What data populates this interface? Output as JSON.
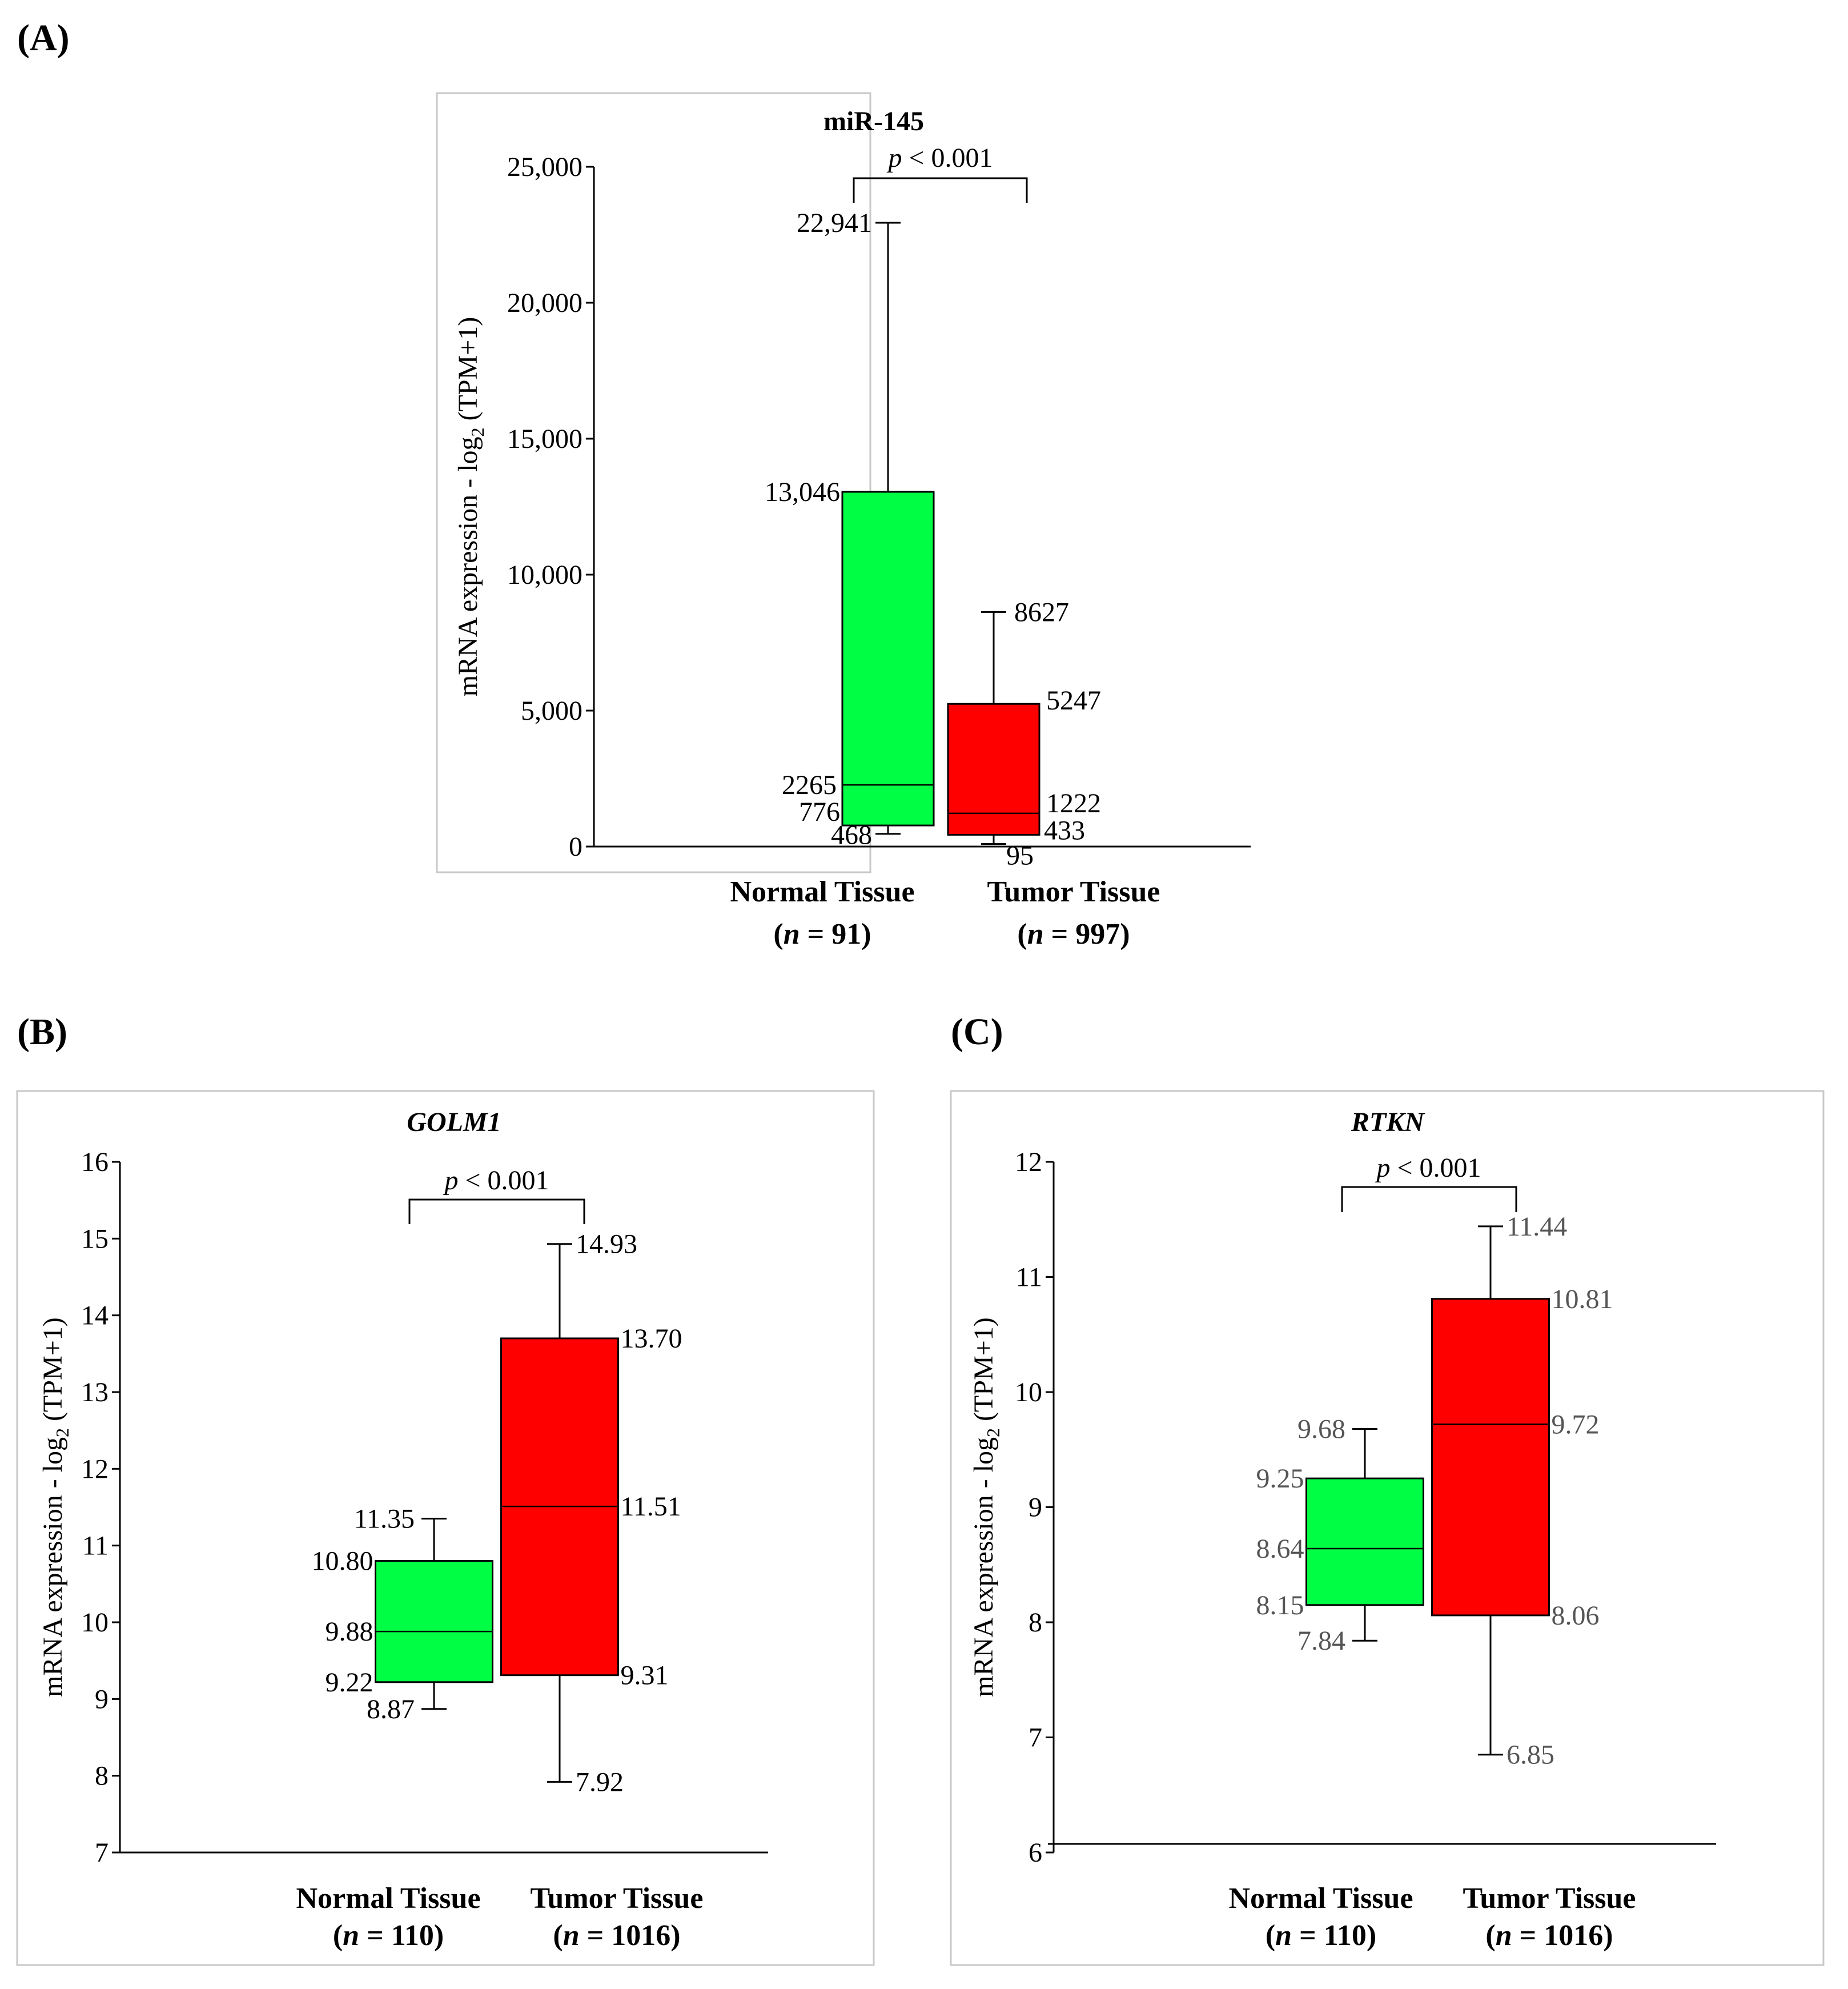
{
  "colors": {
    "normal": "#00ff44",
    "tumor": "#ff0000",
    "frame": "#c8c8c8",
    "axis": "#000000",
    "labels_c": "#555555"
  },
  "chart_data": [
    {
      "id": "A",
      "panel_label": "(A)",
      "type": "box",
      "title": "miR-145",
      "title_italic": false,
      "ylabel_prefix": "mRNA expression - log",
      "ylabel_sub": "2",
      "ylabel_suffix": " (TPM+1)",
      "ylim": [
        0,
        25000
      ],
      "yticks": [
        0,
        5000,
        10000,
        15000,
        20000,
        25000
      ],
      "ytick_labels": [
        "0",
        "5,000",
        "10,000",
        "15,000",
        "20,000",
        "25,000"
      ],
      "pvalue_p": "p",
      "pvalue_rest": " < 0.001",
      "groups": [
        {
          "name": "Normal Tissue",
          "n_prefix": "(",
          "n_italic": "n",
          "n_rest": " = 91)",
          "min": 468,
          "q1": 776,
          "median": 2265,
          "q3": 13046,
          "max": 22941,
          "labels": {
            "max": "22,941",
            "q3": "13,046",
            "median": "2265",
            "q1": "776",
            "min": "468"
          }
        },
        {
          "name": "Tumor Tissue",
          "n_prefix": "(",
          "n_italic": "n",
          "n_rest": " = 997)",
          "min": 95,
          "q1": 433,
          "median": 1222,
          "q3": 5247,
          "max": 8627,
          "labels": {
            "max": "8627",
            "q3": "5247",
            "median": "1222",
            "q1": "433",
            "min": "95"
          }
        }
      ]
    },
    {
      "id": "B",
      "panel_label": "(B)",
      "type": "box",
      "title": "GOLM1",
      "title_italic": true,
      "ylabel_prefix": "mRNA expression - log",
      "ylabel_sub": "2",
      "ylabel_suffix": " (TPM+1)",
      "ylim": [
        7,
        16
      ],
      "yticks": [
        7,
        8,
        9,
        10,
        11,
        12,
        13,
        14,
        15,
        16
      ],
      "ytick_labels": [
        "7",
        "8",
        "9",
        "10",
        "11",
        "12",
        "13",
        "14",
        "15",
        "16"
      ],
      "pvalue_p": "p",
      "pvalue_rest": " < 0.001",
      "groups": [
        {
          "name": "Normal Tissue",
          "n_prefix": "(",
          "n_italic": "n",
          "n_rest": " = 110)",
          "min": 8.87,
          "q1": 9.22,
          "median": 9.88,
          "q3": 10.8,
          "max": 11.35,
          "labels": {
            "max": "11.35",
            "q3": "10.80",
            "median": "9.88",
            "q1": "9.22",
            "min": "8.87"
          }
        },
        {
          "name": "Tumor Tissue",
          "n_prefix": "(",
          "n_italic": "n",
          "n_rest": " = 1016)",
          "min": 7.92,
          "q1": 9.31,
          "median": 11.51,
          "q3": 13.7,
          "max": 14.93,
          "labels": {
            "max": "14.93",
            "q3": "13.70",
            "median": "11.51",
            "q1": "9.31",
            "min": "7.92"
          }
        }
      ]
    },
    {
      "id": "C",
      "panel_label": "(C)",
      "type": "box",
      "title": "RTKN",
      "title_italic": true,
      "ylabel_prefix": "mRNA expression - log",
      "ylabel_sub": "2",
      "ylabel_suffix": " (TPM+1)",
      "ylim": [
        6,
        12
      ],
      "yticks": [
        6,
        7,
        8,
        9,
        10,
        11,
        12
      ],
      "ytick_labels": [
        "6",
        "7",
        "8",
        "9",
        "10",
        "11",
        "12"
      ],
      "pvalue_p": "p",
      "pvalue_rest": " < 0.001",
      "groups": [
        {
          "name": "Normal Tissue",
          "n_prefix": "(",
          "n_italic": "n",
          "n_rest": " = 110)",
          "min": 7.84,
          "q1": 8.15,
          "median": 8.64,
          "q3": 9.25,
          "max": 9.68,
          "labels": {
            "max": "9.68",
            "q3": "9.25",
            "median": "8.64",
            "q1": "8.15",
            "min": "7.84"
          }
        },
        {
          "name": "Tumor Tissue",
          "n_prefix": "(",
          "n_italic": "n",
          "n_rest": " = 1016)",
          "min": 6.85,
          "q1": 8.06,
          "median": 9.72,
          "q3": 10.81,
          "max": 11.44,
          "labels": {
            "max": "11.44",
            "q3": "10.81",
            "median": "9.72",
            "q1": "8.06",
            "min": "6.85"
          }
        }
      ]
    }
  ]
}
